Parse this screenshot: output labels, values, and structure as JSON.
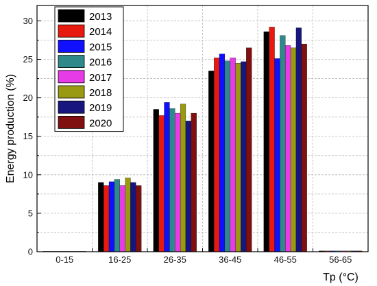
{
  "chart_data": {
    "type": "bar",
    "title": "",
    "xlabel": "Tp (°C)",
    "ylabel": "Energy production (%)",
    "ylim": [
      0,
      32
    ],
    "yticks": [
      0,
      5,
      10,
      15,
      20,
      25,
      30
    ],
    "grid": true,
    "legend_position": "top-left",
    "categories": [
      "0-15",
      "16-25",
      "26-35",
      "36-45",
      "46-55",
      "56-65"
    ],
    "series": [
      {
        "name": "2013",
        "color": "#000000",
        "values": [
          0.05,
          9.0,
          18.5,
          23.5,
          28.6,
          0.1
        ]
      },
      {
        "name": "2014",
        "color": "#e8190e",
        "values": [
          0.05,
          8.6,
          17.7,
          25.2,
          29.2,
          0.1
        ]
      },
      {
        "name": "2015",
        "color": "#1010ff",
        "values": [
          0.05,
          9.1,
          19.4,
          25.7,
          25.1,
          0.1
        ]
      },
      {
        "name": "2016",
        "color": "#2e8a8a",
        "values": [
          0.05,
          9.4,
          18.6,
          24.8,
          28.1,
          0.1
        ]
      },
      {
        "name": "2017",
        "color": "#e83be8",
        "values": [
          0.05,
          8.6,
          18.0,
          25.2,
          26.8,
          0.1
        ]
      },
      {
        "name": "2018",
        "color": "#9a9a12",
        "values": [
          0.05,
          9.6,
          19.2,
          24.5,
          26.5,
          0.1
        ]
      },
      {
        "name": "2019",
        "color": "#16167e",
        "values": [
          0.05,
          9.0,
          17.0,
          24.7,
          29.1,
          0.1
        ]
      },
      {
        "name": "2020",
        "color": "#801010",
        "values": [
          0.05,
          8.6,
          18.0,
          26.5,
          27.0,
          0.1
        ]
      }
    ]
  }
}
